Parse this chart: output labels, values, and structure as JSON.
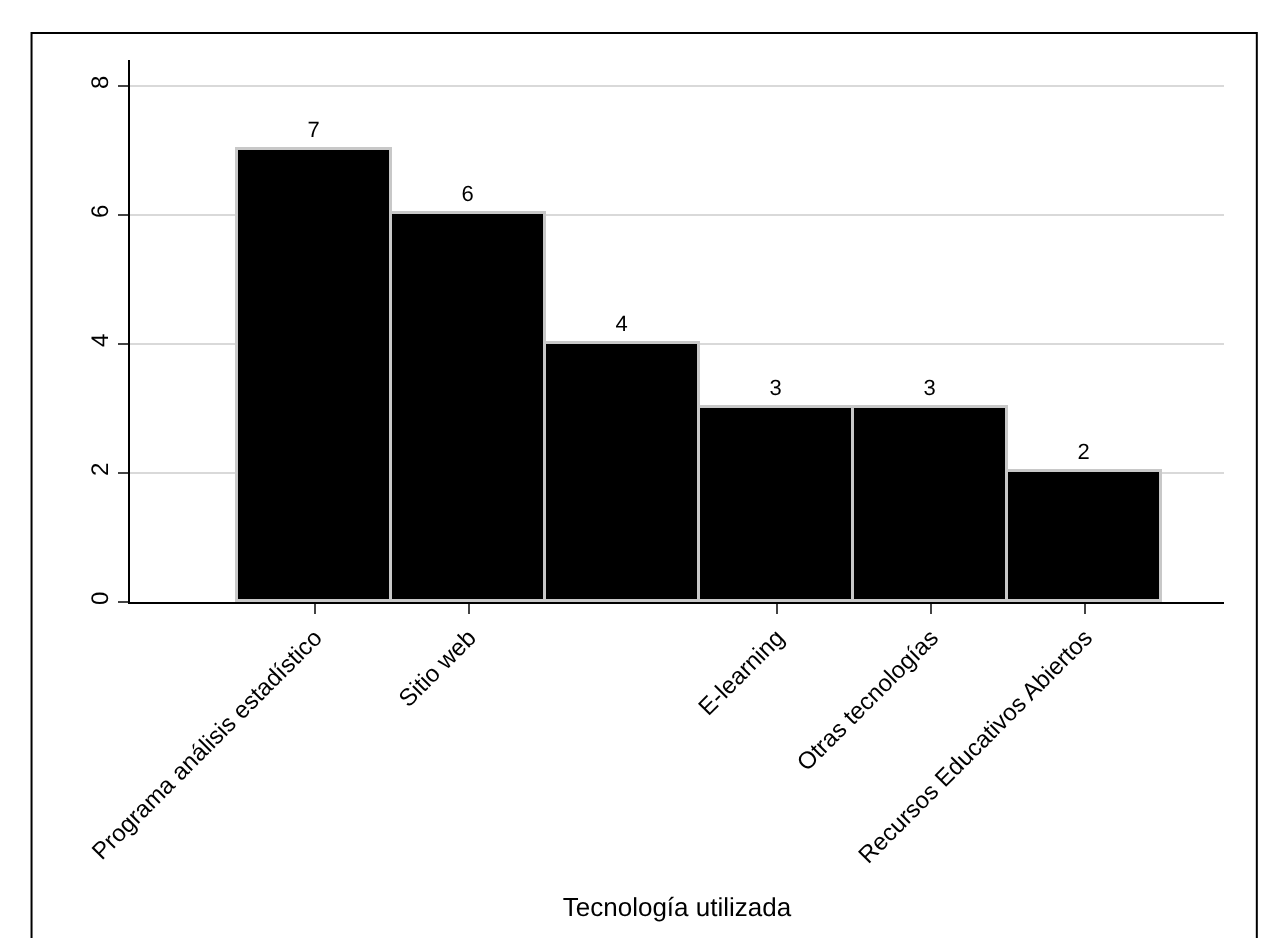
{
  "chart_data": {
    "type": "bar",
    "xlabel": "Tecnología utilizada",
    "categories": [
      "Programa análisis estadístico",
      "Sitio web",
      null,
      "E-learning",
      "Otras tecnologías",
      "Recursos Educativos Abiertos"
    ],
    "values": [
      7,
      6,
      4,
      3,
      3,
      2
    ],
    "color": "#000000",
    "data_labels": true,
    "ylim": [
      0,
      8.4
    ],
    "yticks": [
      0,
      2,
      4,
      6,
      8
    ],
    "grid": "y",
    "legend": false
  }
}
